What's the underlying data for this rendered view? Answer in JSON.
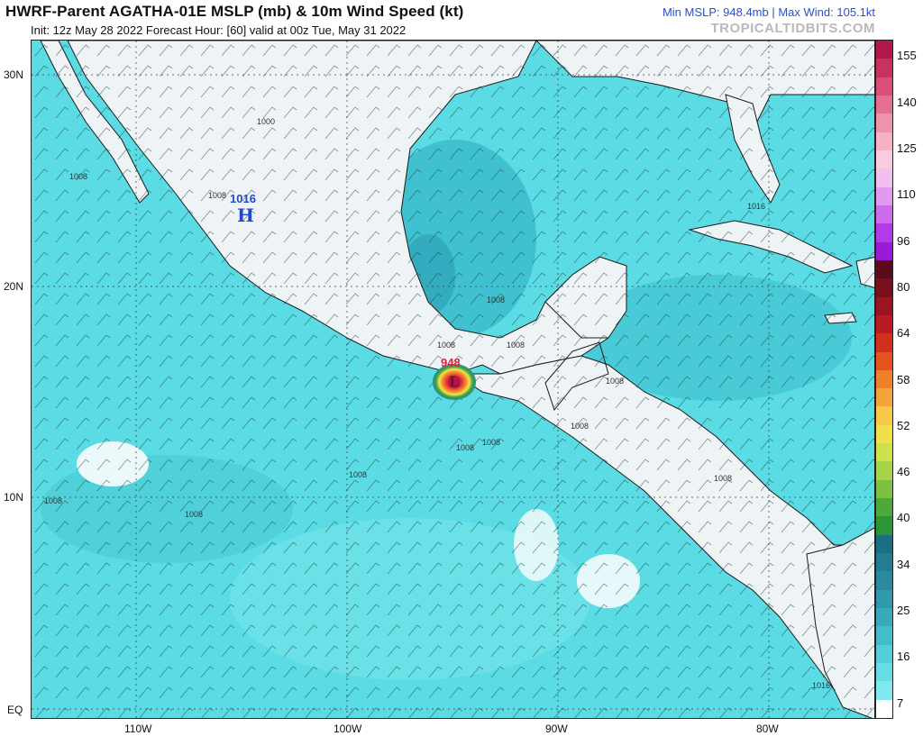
{
  "header": {
    "title": "HWRF-Parent AGATHA-01E MSLP (mb) & 10m Wind Speed (kt)",
    "subtitle": "Init: 12z May 28 2022   Forecast Hour: [60]   valid at 00z Tue, May 31 2022",
    "stats": "Min MSLP: 948.4mb  |  Max Wind: 105.1kt",
    "brand": "TROPICALTIDBITS.COM"
  },
  "map": {
    "lat_labels": [
      "30N",
      "20N",
      "10N",
      "EQ"
    ],
    "lon_labels": [
      "110W",
      "100W",
      "90W",
      "80W"
    ],
    "high_pressure": {
      "value": "1016",
      "symbol": "H",
      "color": "#1f49c9"
    },
    "low_pressure": {
      "value": "948",
      "symbol": "L",
      "color": "#e0203a"
    },
    "isobar_labels": [
      "1000",
      "1008",
      "1008",
      "1008",
      "1008",
      "1008",
      "1008",
      "1008",
      "1008",
      "1008",
      "1008",
      "1016",
      "1008",
      "1008",
      "1016",
      "1008"
    ],
    "colors": {
      "land": "#f4f6f8",
      "ocean_light": "#6ce5ea",
      "ocean_mid": "#41cfd8",
      "ocean_dark": "#2a9fb2",
      "coast": "#1a1a1a"
    }
  },
  "colorbar": {
    "labels": [
      "155",
      "140",
      "125",
      "110",
      "96",
      "80",
      "64",
      "58",
      "52",
      "46",
      "40",
      "34",
      "25",
      "16",
      "7"
    ],
    "colors": [
      "#b2194b",
      "#c8325f",
      "#d94f77",
      "#e47090",
      "#ee93aa",
      "#f5b2c6",
      "#f8cbe0",
      "#f2bff0",
      "#e29af0",
      "#cc6bed",
      "#b23ae8",
      "#9b19d9",
      "#5a0b1c",
      "#7a0f1e",
      "#991522",
      "#b81b21",
      "#d0301c",
      "#e5541c",
      "#f07f2a",
      "#f5a33c",
      "#f7c849",
      "#f0e04d",
      "#d1e14d",
      "#a8d34a",
      "#7bc142",
      "#4fa93a",
      "#2a9636",
      "#1b6f84",
      "#237c91",
      "#2a8aa0",
      "#3298ad",
      "#3aa9bc",
      "#44bccb",
      "#54cfd9",
      "#66dde4",
      "#80e9ee",
      "#ffffff"
    ]
  }
}
